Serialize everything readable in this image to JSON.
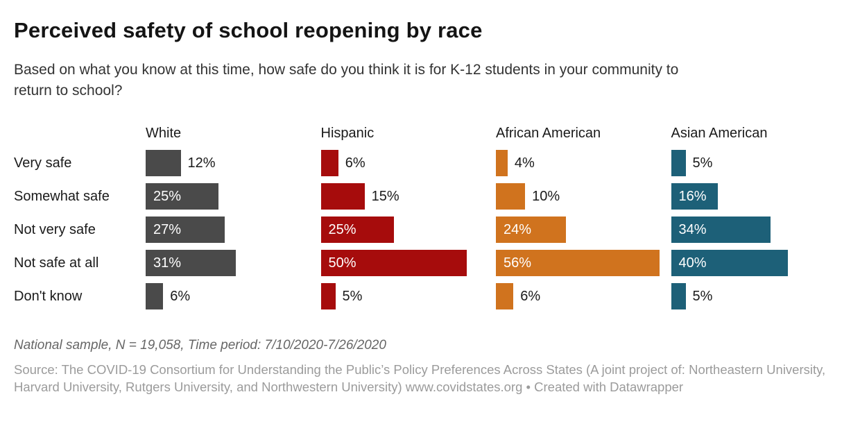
{
  "header": {
    "title": "Perceived safety of school reopening by race",
    "description": "Based on what you know at this time, how safe do you think it is for K-12 students in your community to return to school?"
  },
  "chart_data": {
    "type": "bar",
    "orientation": "horizontal",
    "title": "Perceived safety of school reopening by race",
    "subtitle": "Based on what you know at this time, how safe do you think it is for K-12 students in your community to return to school?",
    "categories": [
      "Very safe",
      "Somewhat safe",
      "Not very safe",
      "Not safe at all",
      "Don't know"
    ],
    "series": [
      {
        "name": "White",
        "color": "#4a4a4a",
        "values": [
          12,
          25,
          27,
          31,
          6
        ]
      },
      {
        "name": "Hispanic",
        "color": "#a60c0c",
        "values": [
          6,
          15,
          25,
          50,
          5
        ]
      },
      {
        "name": "African American",
        "color": "#d0731e",
        "values": [
          4,
          10,
          24,
          56,
          6
        ]
      },
      {
        "name": "Asian American",
        "color": "#1d6078",
        "values": [
          5,
          16,
          34,
          40,
          5
        ]
      }
    ],
    "value_suffix": "%",
    "xlim": [
      0,
      60
    ],
    "grid": false,
    "legend_position": "column-headers",
    "label_inside_threshold": 16
  },
  "footer": {
    "notes": "National sample, N = 19,058, Time period: 7/10/2020-7/26/2020",
    "source_label": "Source:",
    "source_text": "The COVID-19 Consortium for Understanding the Public’s Policy Preferences Across States (A joint project of: Northeastern University, Harvard University, Rutgers University, and Northwestern University) www.covidstates.org",
    "separator": "•",
    "attribution": "Created with Datawrapper"
  }
}
